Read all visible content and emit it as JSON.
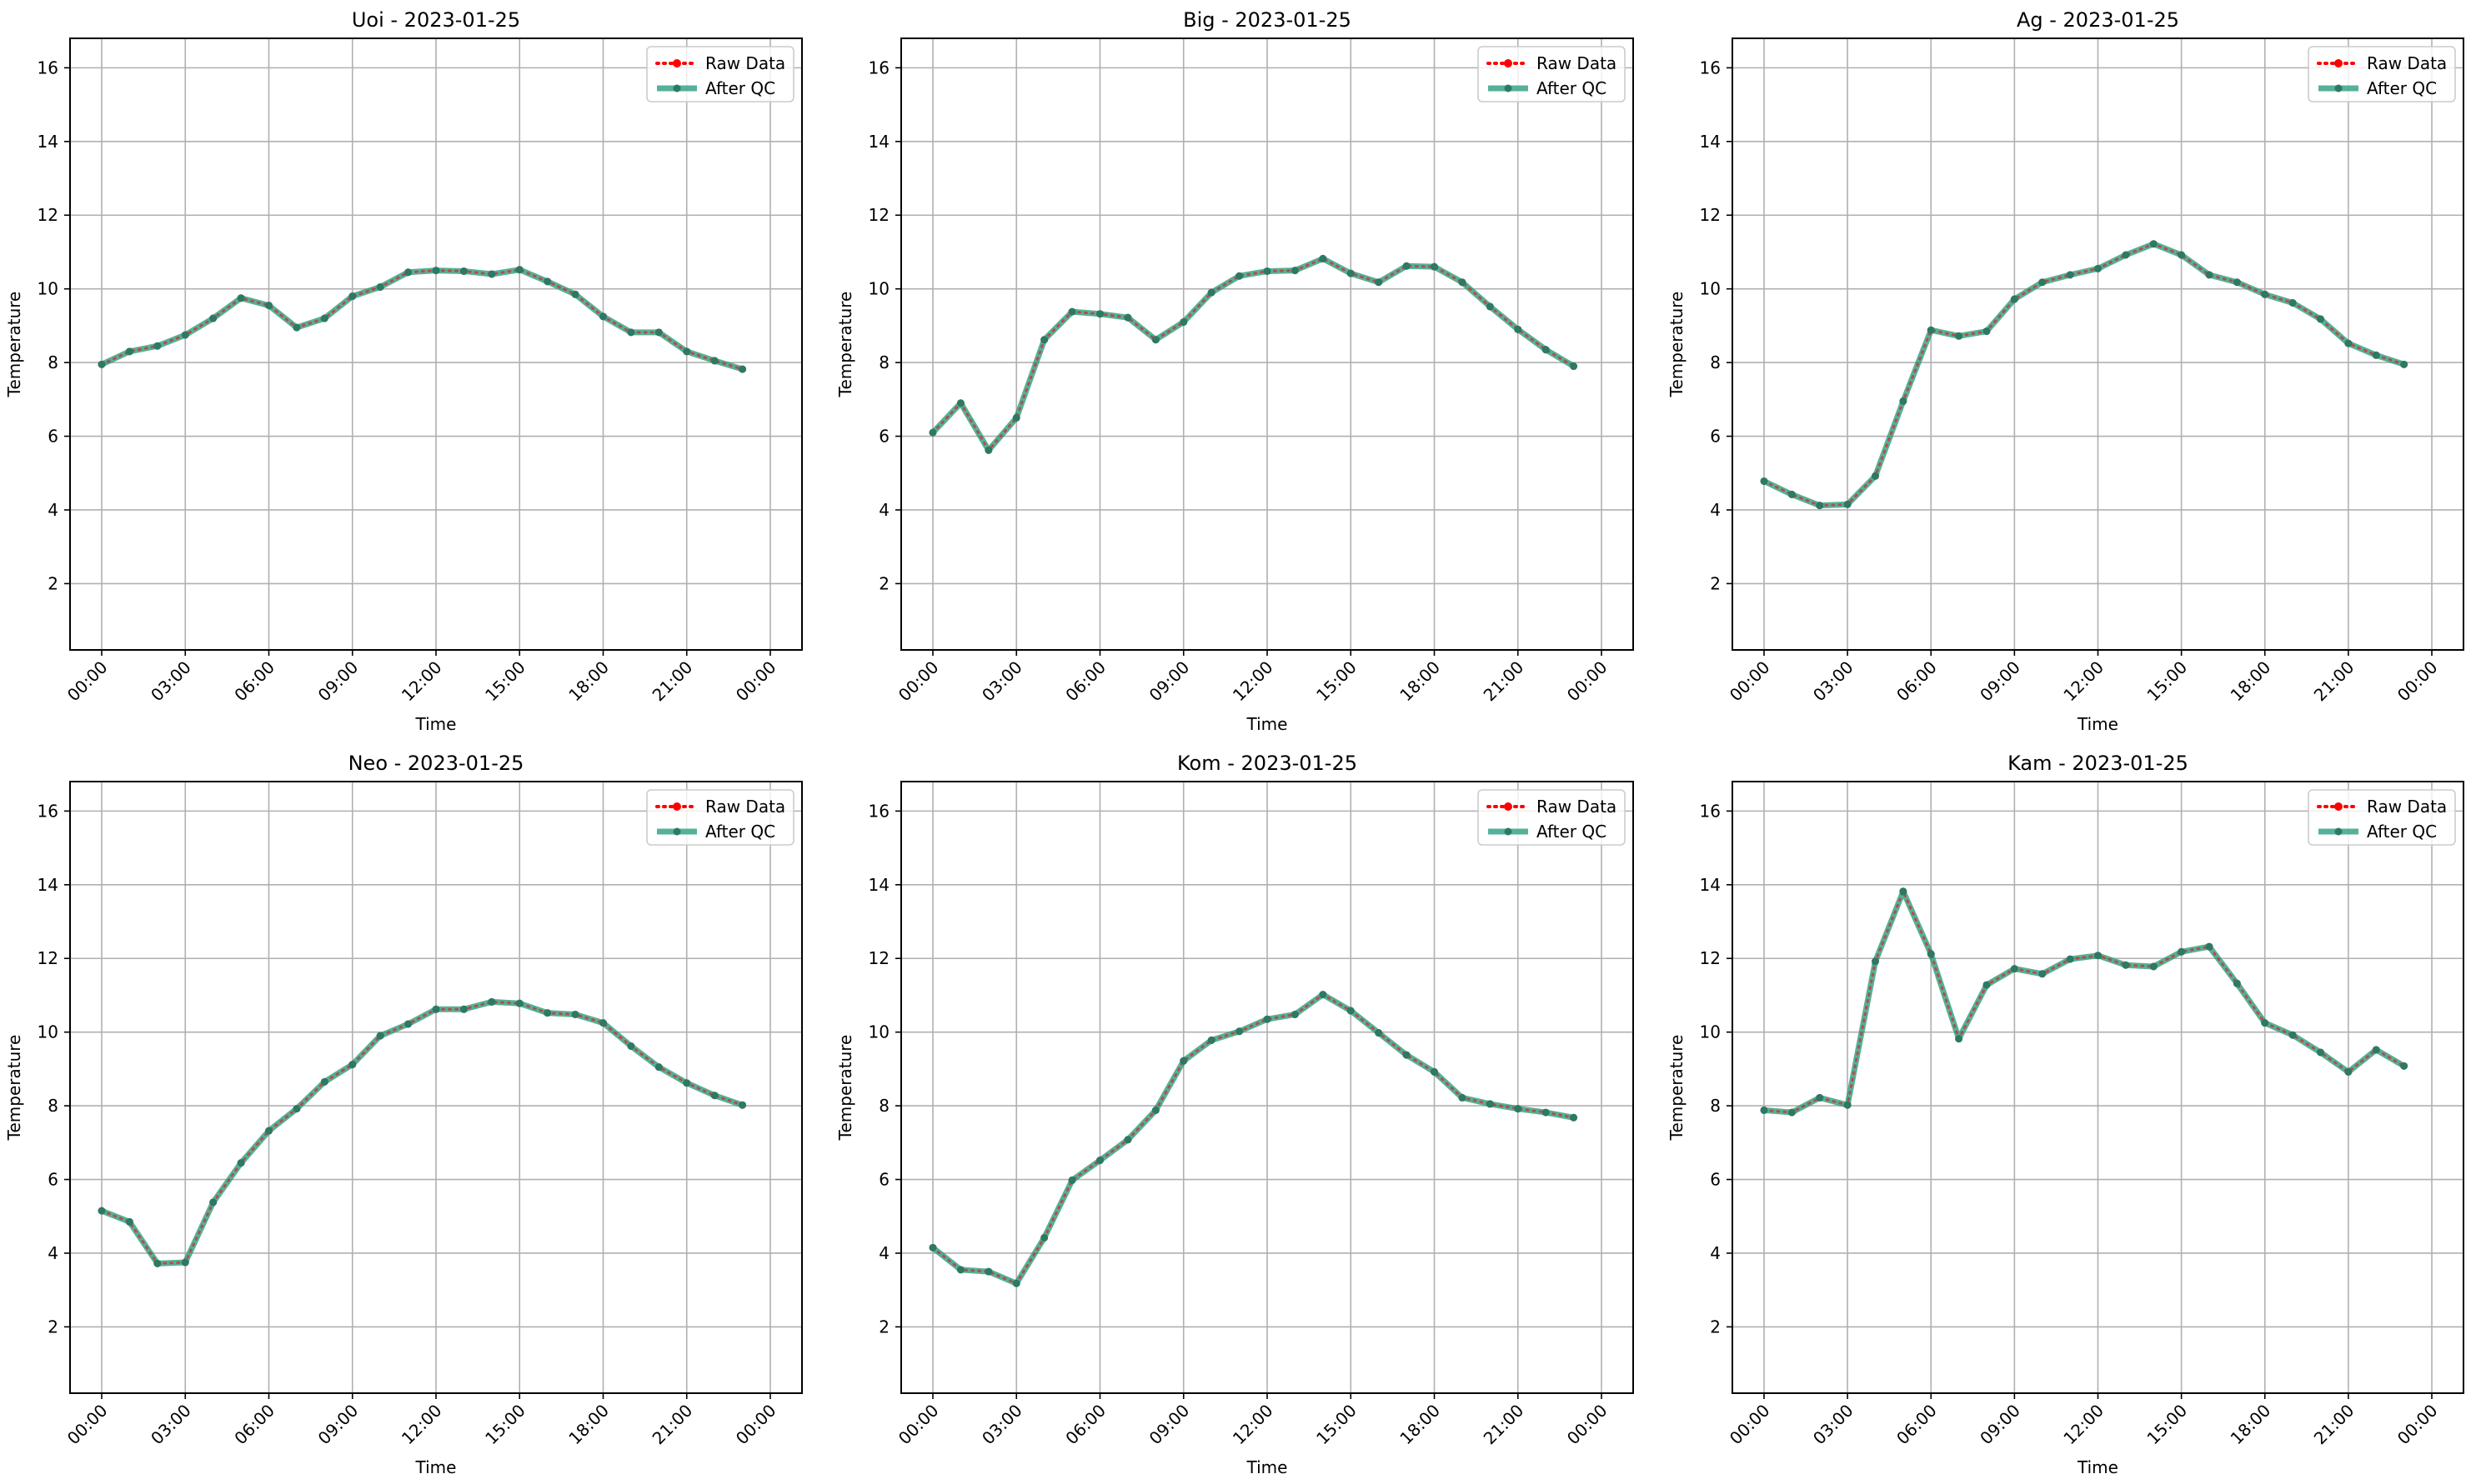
{
  "chart_data": [
    {
      "type": "line",
      "title": "Uoi - 2023-01-25",
      "xlabel": "Time",
      "ylabel": "Temperature",
      "x_hours": [
        0,
        1,
        2,
        3,
        4,
        5,
        6,
        7,
        8,
        9,
        10,
        11,
        12,
        13,
        14,
        15,
        16,
        17,
        18,
        19,
        20,
        21,
        22,
        23
      ],
      "xticks": [
        "00:00",
        "03:00",
        "06:00",
        "09:00",
        "12:00",
        "15:00",
        "18:00",
        "21:00",
        "00:00"
      ],
      "yticks": [
        "2",
        "4",
        "6",
        "8",
        "10",
        "12",
        "14",
        "16"
      ],
      "ylim": [
        0.2,
        16.8
      ],
      "grid": true,
      "legend_position": "upper-right",
      "series": [
        {
          "name": "Raw Data",
          "values": [
            7.95,
            8.3,
            8.45,
            8.75,
            9.2,
            9.75,
            9.55,
            8.95,
            9.2,
            9.8,
            10.05,
            10.45,
            10.5,
            10.48,
            10.4,
            10.52,
            10.2,
            9.85,
            9.25,
            8.82,
            8.82,
            8.3,
            8.05,
            7.82
          ]
        },
        {
          "name": "After QC",
          "values": [
            7.95,
            8.3,
            8.45,
            8.75,
            9.2,
            9.75,
            9.55,
            8.95,
            9.2,
            9.8,
            10.05,
            10.45,
            10.5,
            10.48,
            10.4,
            10.52,
            10.2,
            9.85,
            9.25,
            8.82,
            8.82,
            8.3,
            8.05,
            7.82
          ]
        }
      ]
    },
    {
      "type": "line",
      "title": "Big - 2023-01-25",
      "xlabel": "Time",
      "ylabel": "Temperature",
      "x_hours": [
        0,
        1,
        2,
        3,
        4,
        5,
        6,
        7,
        8,
        9,
        10,
        11,
        12,
        13,
        14,
        15,
        16,
        17,
        18,
        19,
        20,
        21,
        22,
        23
      ],
      "xticks": [
        "00:00",
        "03:00",
        "06:00",
        "09:00",
        "12:00",
        "15:00",
        "18:00",
        "21:00",
        "00:00"
      ],
      "yticks": [
        "2",
        "4",
        "6",
        "8",
        "10",
        "12",
        "14",
        "16"
      ],
      "ylim": [
        0.2,
        16.8
      ],
      "grid": true,
      "legend_position": "upper-right",
      "series": [
        {
          "name": "Raw Data",
          "values": [
            6.1,
            6.9,
            5.62,
            6.5,
            8.62,
            9.38,
            9.32,
            9.22,
            8.62,
            9.1,
            9.9,
            10.35,
            10.48,
            10.5,
            10.82,
            10.42,
            10.18,
            10.62,
            10.6,
            10.18,
            9.52,
            8.9,
            8.35,
            7.9
          ]
        },
        {
          "name": "After QC",
          "values": [
            6.1,
            6.9,
            5.62,
            6.5,
            8.62,
            9.38,
            9.32,
            9.22,
            8.62,
            9.1,
            9.9,
            10.35,
            10.48,
            10.5,
            10.82,
            10.42,
            10.18,
            10.62,
            10.6,
            10.18,
            9.52,
            8.9,
            8.35,
            7.9
          ]
        }
      ]
    },
    {
      "type": "line",
      "title": "Ag - 2023-01-25",
      "xlabel": "Time",
      "ylabel": "Temperature",
      "x_hours": [
        0,
        1,
        2,
        3,
        4,
        5,
        6,
        7,
        8,
        9,
        10,
        11,
        12,
        13,
        14,
        15,
        16,
        17,
        18,
        19,
        20,
        21,
        22,
        23
      ],
      "xticks": [
        "00:00",
        "03:00",
        "06:00",
        "09:00",
        "12:00",
        "15:00",
        "18:00",
        "21:00",
        "00:00"
      ],
      "yticks": [
        "2",
        "4",
        "6",
        "8",
        "10",
        "12",
        "14",
        "16"
      ],
      "ylim": [
        0.2,
        16.8
      ],
      "grid": true,
      "legend_position": "upper-right",
      "series": [
        {
          "name": "Raw Data",
          "values": [
            4.78,
            4.42,
            4.12,
            4.15,
            4.92,
            6.95,
            8.88,
            8.72,
            8.85,
            9.72,
            10.18,
            10.38,
            10.55,
            10.92,
            11.22,
            10.92,
            10.38,
            10.18,
            9.85,
            9.62,
            9.18,
            8.52,
            8.2,
            7.95
          ]
        },
        {
          "name": "After QC",
          "values": [
            4.78,
            4.42,
            4.12,
            4.15,
            4.92,
            6.95,
            8.88,
            8.72,
            8.85,
            9.72,
            10.18,
            10.38,
            10.55,
            10.92,
            11.22,
            10.92,
            10.38,
            10.18,
            9.85,
            9.62,
            9.18,
            8.52,
            8.2,
            7.95
          ]
        }
      ]
    },
    {
      "type": "line",
      "title": "Neo - 2023-01-25",
      "xlabel": "Time",
      "ylabel": "Temperature",
      "x_hours": [
        0,
        1,
        2,
        3,
        4,
        5,
        6,
        7,
        8,
        9,
        10,
        11,
        12,
        13,
        14,
        15,
        16,
        17,
        18,
        19,
        20,
        21,
        22,
        23
      ],
      "xticks": [
        "00:00",
        "03:00",
        "06:00",
        "09:00",
        "12:00",
        "15:00",
        "18:00",
        "21:00",
        "00:00"
      ],
      "yticks": [
        "2",
        "4",
        "6",
        "8",
        "10",
        "12",
        "14",
        "16"
      ],
      "ylim": [
        0.2,
        16.8
      ],
      "grid": true,
      "legend_position": "upper-right",
      "series": [
        {
          "name": "Raw Data",
          "values": [
            5.15,
            4.85,
            3.72,
            3.75,
            5.38,
            6.45,
            7.32,
            7.92,
            8.65,
            9.12,
            9.9,
            10.22,
            10.62,
            10.62,
            10.82,
            10.78,
            10.52,
            10.48,
            10.25,
            9.62,
            9.05,
            8.62,
            8.28,
            8.02
          ]
        },
        {
          "name": "After QC",
          "values": [
            5.15,
            4.85,
            3.72,
            3.75,
            5.38,
            6.45,
            7.32,
            7.92,
            8.65,
            9.12,
            9.9,
            10.22,
            10.62,
            10.62,
            10.82,
            10.78,
            10.52,
            10.48,
            10.25,
            9.62,
            9.05,
            8.62,
            8.28,
            8.02
          ]
        }
      ]
    },
    {
      "type": "line",
      "title": "Kom - 2023-01-25",
      "xlabel": "Time",
      "ylabel": "Temperature",
      "x_hours": [
        0,
        1,
        2,
        3,
        4,
        5,
        6,
        7,
        8,
        9,
        10,
        11,
        12,
        13,
        14,
        15,
        16,
        17,
        18,
        19,
        20,
        21,
        22,
        23
      ],
      "xticks": [
        "00:00",
        "03:00",
        "06:00",
        "09:00",
        "12:00",
        "15:00",
        "18:00",
        "21:00",
        "00:00"
      ],
      "yticks": [
        "2",
        "4",
        "6",
        "8",
        "10",
        "12",
        "14",
        "16"
      ],
      "ylim": [
        0.2,
        16.8
      ],
      "grid": true,
      "legend_position": "upper-right",
      "series": [
        {
          "name": "Raw Data",
          "values": [
            4.15,
            3.55,
            3.5,
            3.18,
            4.42,
            5.98,
            6.52,
            7.08,
            7.88,
            9.22,
            9.78,
            10.02,
            10.35,
            10.48,
            11.02,
            10.58,
            9.98,
            9.38,
            8.92,
            8.22,
            8.05,
            7.92,
            7.82,
            7.68
          ]
        },
        {
          "name": "After QC",
          "values": [
            4.15,
            3.55,
            3.5,
            3.18,
            4.42,
            5.98,
            6.52,
            7.08,
            7.88,
            9.22,
            9.78,
            10.02,
            10.35,
            10.48,
            11.02,
            10.58,
            9.98,
            9.38,
            8.92,
            8.22,
            8.05,
            7.92,
            7.82,
            7.68
          ]
        }
      ]
    },
    {
      "type": "line",
      "title": "Kam - 2023-01-25",
      "xlabel": "Time",
      "ylabel": "Temperature",
      "x_hours": [
        0,
        1,
        2,
        3,
        4,
        5,
        6,
        7,
        8,
        9,
        10,
        11,
        12,
        13,
        14,
        15,
        16,
        17,
        18,
        19,
        20,
        21,
        22,
        23
      ],
      "xticks": [
        "00:00",
        "03:00",
        "06:00",
        "09:00",
        "12:00",
        "15:00",
        "18:00",
        "21:00",
        "00:00"
      ],
      "yticks": [
        "2",
        "4",
        "6",
        "8",
        "10",
        "12",
        "14",
        "16"
      ],
      "ylim": [
        0.2,
        16.8
      ],
      "grid": true,
      "legend_position": "upper-right",
      "series": [
        {
          "name": "Raw Data",
          "values": [
            7.88,
            7.82,
            8.22,
            8.02,
            11.92,
            13.82,
            12.12,
            9.82,
            11.28,
            11.72,
            11.58,
            11.98,
            12.08,
            11.82,
            11.78,
            12.18,
            12.32,
            11.32,
            10.25,
            9.92,
            9.45,
            8.92,
            9.52,
            9.08
          ]
        },
        {
          "name": "After QC",
          "values": [
            7.88,
            7.82,
            8.22,
            8.02,
            11.92,
            13.82,
            12.12,
            9.82,
            11.28,
            11.72,
            11.58,
            11.98,
            12.08,
            11.82,
            11.78,
            12.18,
            12.32,
            11.32,
            10.25,
            9.92,
            9.45,
            8.92,
            9.52,
            9.08
          ]
        }
      ]
    }
  ],
  "colors": {
    "raw": "#ff0000",
    "qc": "#2a9d7f",
    "qc_marker": "#2c7a64",
    "grid": "#b0b0b0"
  }
}
